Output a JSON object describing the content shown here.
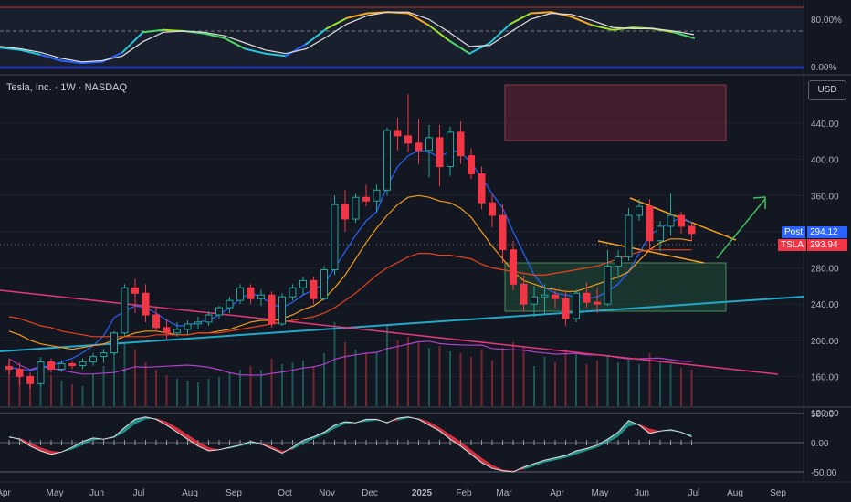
{
  "header": {
    "title": "Tesla, Inc. · 1W · NASDAQ",
    "currency": "USD"
  },
  "price_badges": {
    "post_label": "Post",
    "post_value": "294.12",
    "ticker_label": "TSLA",
    "ticker_value": "293.94"
  },
  "colors": {
    "background": "#131722",
    "up": "#26a69a",
    "down": "#f23645",
    "ma_fast": "#2962ff",
    "ma_mid": "#f59b1b",
    "ma_slow": "#e8431c",
    "trend_cyan": "#22a8c8",
    "trend_pink": "#e5397a",
    "wedge": "#f7a21b",
    "arrow": "#3fbf5c",
    "volume_avg": "#b040c8"
  },
  "chart_data": [
    {
      "type": "line",
      "panel": "stochastic-rsi",
      "y_ticks": [
        {
          "value": 80,
          "label": "80.00%"
        },
        {
          "value": 0,
          "label": "0.00%"
        }
      ],
      "ylim": [
        0,
        100
      ],
      "series": [
        {
          "values": [
            32,
            28,
            20,
            10,
            6,
            8,
            24,
            58,
            62,
            60,
            56,
            48,
            30,
            22,
            18,
            38,
            64,
            82,
            90,
            92,
            90,
            70,
            44,
            22,
            40,
            72,
            90,
            92,
            84,
            70,
            62,
            66,
            64,
            58,
            48
          ]
        },
        {
          "values": [
            34,
            30,
            24,
            14,
            8,
            10,
            18,
            42,
            58,
            60,
            58,
            52,
            40,
            28,
            22,
            30,
            50,
            72,
            86,
            92,
            92,
            80,
            58,
            34,
            36,
            58,
            80,
            90,
            88,
            78,
            66,
            64,
            64,
            60,
            54
          ]
        }
      ]
    },
    {
      "type": "candlestick",
      "panel": "price",
      "ylabel": "",
      "x_ticks": [
        "Apr",
        "May",
        "Jun",
        "Jul",
        "Aug",
        "Sep",
        "Oct",
        "Nov",
        "Dec",
        "2025",
        "Feb",
        "Mar",
        "Apr",
        "May",
        "Jun",
        "Jul",
        "Aug",
        "Sep"
      ],
      "y_ticks": [
        440,
        400,
        360,
        320,
        280,
        240,
        200,
        160,
        120
      ],
      "ylim": [
        100,
        480
      ],
      "ohlc": [
        [
          171,
          178,
          162,
          168
        ],
        [
          168,
          175,
          150,
          160
        ],
        [
          160,
          164,
          147,
          152
        ],
        [
          152,
          178,
          150,
          176
        ],
        [
          176,
          180,
          164,
          168
        ],
        [
          168,
          178,
          165,
          174
        ],
        [
          174,
          178,
          168,
          172
        ],
        [
          172,
          180,
          168,
          176
        ],
        [
          176,
          186,
          172,
          182
        ],
        [
          182,
          190,
          175,
          186
        ],
        [
          186,
          210,
          184,
          208
        ],
        [
          208,
          262,
          205,
          258
        ],
        [
          258,
          268,
          230,
          252
        ],
        [
          252,
          262,
          220,
          228
        ],
        [
          228,
          236,
          210,
          214
        ],
        [
          214,
          224,
          200,
          208
        ],
        [
          208,
          220,
          204,
          212
        ],
        [
          212,
          222,
          206,
          218
        ],
        [
          218,
          226,
          212,
          220
        ],
        [
          220,
          232,
          216,
          228
        ],
        [
          228,
          238,
          224,
          236
        ],
        [
          236,
          248,
          230,
          244
        ],
        [
          244,
          262,
          240,
          258
        ],
        [
          258,
          262,
          240,
          246
        ],
        [
          246,
          256,
          238,
          250
        ],
        [
          250,
          254,
          214,
          218
        ],
        [
          218,
          252,
          216,
          248
        ],
        [
          248,
          262,
          244,
          258
        ],
        [
          258,
          270,
          250,
          266
        ],
        [
          266,
          270,
          240,
          246
        ],
        [
          246,
          282,
          244,
          278
        ],
        [
          278,
          360,
          272,
          350
        ],
        [
          350,
          366,
          320,
          334
        ],
        [
          334,
          362,
          330,
          358
        ],
        [
          358,
          372,
          348,
          354
        ],
        [
          354,
          372,
          342,
          366
        ],
        [
          366,
          435,
          360,
          432
        ],
        [
          432,
          446,
          410,
          426
        ],
        [
          426,
          472,
          408,
          418
        ],
        [
          418,
          445,
          395,
          410
        ],
        [
          410,
          438,
          380,
          424
        ],
        [
          424,
          438,
          370,
          392
        ],
        [
          392,
          436,
          382,
          430
        ],
        [
          430,
          442,
          395,
          404
        ],
        [
          404,
          412,
          378,
          384
        ],
        [
          384,
          392,
          345,
          352
        ],
        [
          352,
          362,
          325,
          338
        ],
        [
          338,
          350,
          285,
          300
        ],
        [
          300,
          310,
          255,
          262
        ],
        [
          262,
          272,
          232,
          240
        ],
        [
          240,
          260,
          226,
          248
        ],
        [
          248,
          262,
          228,
          250
        ],
        [
          250,
          258,
          236,
          246
        ],
        [
          246,
          254,
          216,
          224
        ],
        [
          224,
          256,
          220,
          252
        ],
        [
          252,
          264,
          236,
          242
        ],
        [
          242,
          258,
          230,
          240
        ],
        [
          240,
          300,
          238,
          282
        ],
        [
          282,
          300,
          268,
          292
        ],
        [
          292,
          346,
          288,
          338
        ],
        [
          338,
          356,
          332,
          348
        ],
        [
          348,
          356,
          300,
          310
        ],
        [
          310,
          332,
          298,
          326
        ],
        [
          326,
          362,
          316,
          338
        ],
        [
          338,
          342,
          318,
          326
        ],
        [
          326,
          330,
          310,
          318
        ]
      ],
      "series": [
        {
          "values": [
            170,
            168,
            166,
            170,
            172,
            176,
            180,
            186,
            194,
            205,
            225,
            232,
            238,
            236,
            230,
            222,
            216,
            216,
            220,
            222,
            228,
            236,
            246,
            252,
            248,
            240,
            236,
            242,
            250,
            256,
            262,
            280,
            298,
            316,
            332,
            342,
            370,
            392,
            404,
            410,
            408,
            402,
            410,
            408,
            396,
            380,
            362,
            346,
            320,
            296,
            272,
            258,
            252,
            250,
            248,
            246,
            248,
            254,
            262,
            276,
            296,
            316,
            324,
            330,
            336,
            330
          ]
        },
        {
          "values": [
            210,
            206,
            200,
            196,
            194,
            192,
            190,
            192,
            194,
            196,
            200,
            204,
            208,
            210,
            210,
            208,
            206,
            206,
            208,
            208,
            210,
            212,
            216,
            220,
            222,
            222,
            224,
            228,
            234,
            238,
            246,
            258,
            272,
            290,
            308,
            324,
            338,
            350,
            358,
            360,
            358,
            354,
            352,
            346,
            336,
            320,
            304,
            290,
            276,
            266,
            262,
            258,
            256,
            254,
            254,
            258,
            262,
            266,
            270,
            276,
            288,
            300,
            308,
            312,
            312,
            310
          ]
        },
        {
          "values": [
            226,
            224,
            220,
            216,
            214,
            210,
            208,
            206,
            204,
            204,
            204,
            204,
            204,
            204,
            206,
            206,
            206,
            206,
            208,
            208,
            208,
            210,
            212,
            214,
            216,
            218,
            220,
            222,
            224,
            226,
            230,
            236,
            244,
            252,
            262,
            272,
            280,
            286,
            292,
            296,
            296,
            294,
            294,
            292,
            290,
            284,
            280,
            278,
            276,
            274,
            272,
            272,
            274,
            276,
            278,
            280,
            282,
            286,
            290,
            294,
            298,
            300,
            300,
            300,
            300,
            300
          ]
        }
      ],
      "price_labels": [
        "294.12",
        "293.94"
      ],
      "volume": [
        52,
        38,
        30,
        54,
        34,
        28,
        24,
        22,
        36,
        44,
        58,
        70,
        62,
        48,
        40,
        34,
        30,
        28,
        26,
        30,
        32,
        36,
        40,
        44,
        40,
        52,
        46,
        48,
        50,
        44,
        58,
        92,
        70,
        62,
        58,
        60,
        88,
        72,
        76,
        70,
        64,
        66,
        60,
        58,
        54,
        62,
        50,
        64,
        70,
        66,
        44,
        54,
        48,
        62,
        58,
        46,
        50,
        56,
        48,
        52,
        46,
        58,
        50,
        46,
        42,
        40
      ]
    },
    {
      "type": "area",
      "panel": "oscillator",
      "y_ticks": [
        {
          "value": 50,
          "label": "50.00"
        },
        {
          "value": 0,
          "label": "0.00"
        },
        {
          "value": -50,
          "label": "-50.00"
        }
      ],
      "ylim": [
        -60,
        60
      ],
      "series": [
        {
          "values": [
            10,
            6,
            -6,
            -14,
            -20,
            -16,
            -8,
            2,
            8,
            6,
            10,
            26,
            40,
            44,
            40,
            30,
            18,
            6,
            -6,
            -14,
            -12,
            -8,
            -4,
            2,
            -2,
            -10,
            -18,
            -8,
            4,
            10,
            18,
            30,
            36,
            34,
            40,
            40,
            34,
            42,
            44,
            40,
            30,
            20,
            6,
            -6,
            -20,
            -34,
            -44,
            -48,
            -50,
            -42,
            -36,
            -30,
            -26,
            -22,
            -14,
            -10,
            -4,
            6,
            18,
            38,
            30,
            16,
            20,
            22,
            18,
            10
          ]
        },
        {
          "values": [
            8,
            8,
            0,
            -8,
            -14,
            -16,
            -12,
            -4,
            4,
            6,
            8,
            18,
            32,
            40,
            42,
            36,
            26,
            14,
            2,
            -8,
            -12,
            -10,
            -6,
            -2,
            0,
            -6,
            -14,
            -12,
            -2,
            6,
            14,
            24,
            32,
            34,
            36,
            38,
            36,
            38,
            42,
            42,
            36,
            26,
            14,
            2,
            -12,
            -26,
            -38,
            -46,
            -48,
            -46,
            -40,
            -34,
            -30,
            -26,
            -20,
            -14,
            -8,
            0,
            10,
            28,
            32,
            24,
            20,
            20,
            18,
            14
          ]
        }
      ]
    }
  ]
}
